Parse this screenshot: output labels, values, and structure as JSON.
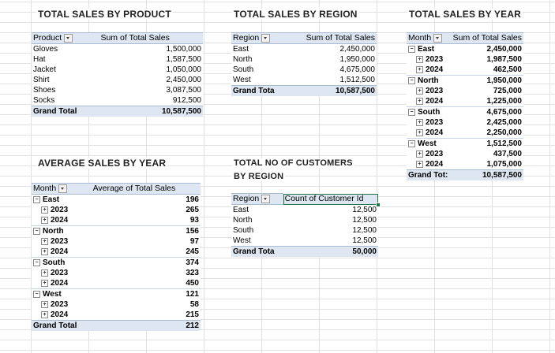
{
  "product": {
    "title": "TOTAL SALES BY PRODUCT",
    "col1": "Product",
    "col2": "Sum of Total Sales",
    "rows": [
      {
        "label": "Gloves",
        "value": "1,500,000"
      },
      {
        "label": "Hat",
        "value": "1,587,500"
      },
      {
        "label": "Jacket",
        "value": "1,050,000"
      },
      {
        "label": "Shirt",
        "value": "2,450,000"
      },
      {
        "label": "Shoes",
        "value": "3,087,500"
      },
      {
        "label": "Socks",
        "value": "912,500"
      }
    ],
    "total_label": "Grand Total",
    "total_value": "10,587,500"
  },
  "region": {
    "title": "TOTAL SALES BY REGION",
    "col1": "Region",
    "col2": "Sum of Total Sales",
    "rows": [
      {
        "label": "East",
        "value": "2,450,000"
      },
      {
        "label": "North",
        "value": "1,950,000"
      },
      {
        "label": "South",
        "value": "4,675,000"
      },
      {
        "label": "West",
        "value": "1,512,500"
      }
    ],
    "total_label": "Grand Tota",
    "total_value": "10,587,500"
  },
  "year": {
    "title": "TOTAL SALES BY YEAR",
    "col1": "Month",
    "col2": "Sum of Total Sales",
    "rows": [
      {
        "level": 1,
        "label": "East",
        "value": "2,450,000"
      },
      {
        "level": 2,
        "label": "2023",
        "value": "1,987,500"
      },
      {
        "level": 2,
        "label": "2024",
        "value": "462,500"
      },
      {
        "level": 1,
        "label": "North",
        "value": "1,950,000"
      },
      {
        "level": 2,
        "label": "2023",
        "value": "725,000"
      },
      {
        "level": 2,
        "label": "2024",
        "value": "1,225,000"
      },
      {
        "level": 1,
        "label": "South",
        "value": "4,675,000"
      },
      {
        "level": 2,
        "label": "2023",
        "value": "2,425,000"
      },
      {
        "level": 2,
        "label": "2024",
        "value": "2,250,000"
      },
      {
        "level": 1,
        "label": "West",
        "value": "1,512,500"
      },
      {
        "level": 2,
        "label": "2023",
        "value": "437,500"
      },
      {
        "level": 2,
        "label": "2024",
        "value": "1,075,000"
      }
    ],
    "total_label": "Grand Tot:",
    "total_value": "10,587,500"
  },
  "average": {
    "title": "AVERAGE SALES BY YEAR",
    "col1": "Month",
    "col2": "Average of Total Sales",
    "rows": [
      {
        "level": 1,
        "label": "East",
        "value": "196"
      },
      {
        "level": 2,
        "label": "2023",
        "value": "265"
      },
      {
        "level": 2,
        "label": "2024",
        "value": "93"
      },
      {
        "level": 1,
        "label": "North",
        "value": "156"
      },
      {
        "level": 2,
        "label": "2023",
        "value": "97"
      },
      {
        "level": 2,
        "label": "2024",
        "value": "245"
      },
      {
        "level": 1,
        "label": "South",
        "value": "374"
      },
      {
        "level": 2,
        "label": "2023",
        "value": "323"
      },
      {
        "level": 2,
        "label": "2024",
        "value": "450"
      },
      {
        "level": 1,
        "label": "West",
        "value": "121"
      },
      {
        "level": 2,
        "label": "2023",
        "value": "58"
      },
      {
        "level": 2,
        "label": "2024",
        "value": "215"
      }
    ],
    "total_label": "Grand Total",
    "total_value": "212"
  },
  "customers": {
    "title_line1": "TOTAL NO OF CUSTOMERS",
    "title_line2": "BY REGION",
    "col1": "Region",
    "col2": "Count of Customer Id",
    "rows": [
      {
        "label": "East",
        "value": "12,500"
      },
      {
        "label": "North",
        "value": "12,500"
      },
      {
        "label": "South",
        "value": "12,500"
      },
      {
        "label": "West",
        "value": "12,500"
      }
    ],
    "total_label": "Grand Tota",
    "total_value": "50,000"
  },
  "icons": {
    "filter": "filter-dropdown-icon",
    "collapse": "collapse-minus-icon",
    "expand": "expand-plus-icon"
  },
  "colors": {
    "pivot_header_bg": "#dde6f1",
    "pivot_border": "#a9bad3",
    "selection": "#217346"
  }
}
